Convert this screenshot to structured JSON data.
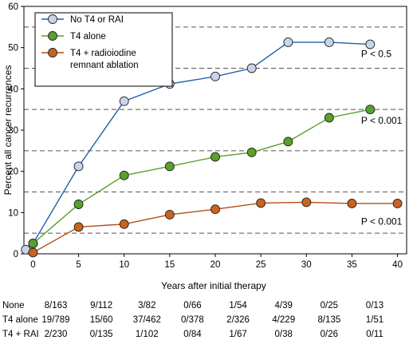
{
  "chart_data": {
    "type": "line",
    "title": "",
    "xlabel": "Years after initial therapy",
    "ylabel": "Percent all cancer recurrences",
    "xlim": [
      -1,
      41
    ],
    "ylim": [
      0,
      60
    ],
    "x_ticks": [
      0,
      5,
      10,
      15,
      20,
      25,
      30,
      35,
      40
    ],
    "y_ticks": [
      0,
      10,
      20,
      30,
      40,
      50,
      60
    ],
    "dashed_reference_lines": [
      5,
      15,
      25,
      35,
      45,
      55
    ],
    "legend_placement": "top-left",
    "series": [
      {
        "name": "No T4 or RAI",
        "color": "#1f5fa8",
        "marker_fill": "#c9d3ec",
        "x": [
          -0.8,
          0,
          5,
          10,
          15,
          20,
          24,
          28,
          32.5,
          37
        ],
        "y": [
          1,
          2.5,
          21.2,
          37,
          41.2,
          43,
          45,
          51.3,
          51.3,
          50.8
        ]
      },
      {
        "name": "T4 alone",
        "color": "#5aa02c",
        "marker_fill": "#5aa02c",
        "x": [
          0,
          5,
          10,
          15,
          20,
          24,
          28,
          32.5,
          37
        ],
        "y": [
          2.5,
          12,
          19,
          21.2,
          23.5,
          24.6,
          27.2,
          33,
          35
        ]
      },
      {
        "name": "T4 + radioiodine remnant ablation",
        "color": "#b54a18",
        "marker_fill": "#c8641e",
        "x": [
          0,
          5,
          10,
          15,
          20,
          25,
          30,
          35,
          40
        ],
        "y": [
          0.3,
          6.5,
          7.2,
          9.5,
          10.8,
          12.3,
          12.5,
          12.2,
          12.2
        ]
      }
    ],
    "annotations": [
      {
        "text": "P < 0.5",
        "x": 36,
        "y": 48.5
      },
      {
        "text": "P < 0.001",
        "x": 36,
        "y": 32.3
      },
      {
        "text": "P < 0.001",
        "x": 36,
        "y": 7.8
      }
    ],
    "risk_table": {
      "x_positions": [
        0,
        5,
        10,
        15,
        20,
        25,
        30,
        35,
        40
      ],
      "rows": [
        {
          "label": "None",
          "values": [
            "8/163",
            "9/112",
            "3/82",
            "0/66",
            "1/54",
            "4/39",
            "0/25",
            "0/13"
          ]
        },
        {
          "label": "T4 alone",
          "values": [
            "19/789",
            "15/60",
            "37/462",
            "0/378",
            "2/326",
            "4/229",
            "8/135",
            "1/51"
          ]
        },
        {
          "label": "T4 + RAI",
          "values": [
            "2/230",
            "0/135",
            "1/102",
            "0/84",
            "1/67",
            "0/38",
            "0/26",
            "0/11"
          ]
        }
      ]
    }
  }
}
